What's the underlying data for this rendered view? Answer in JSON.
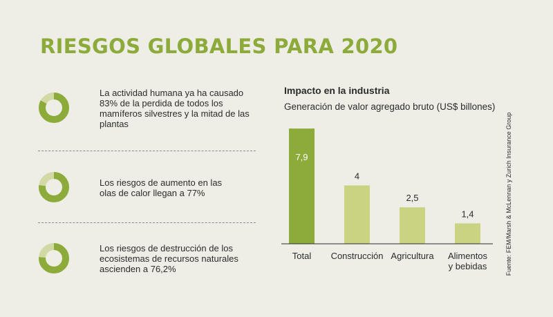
{
  "title": "RIESGOS GLOBALES PARA 2020",
  "stats": [
    {
      "text": "La actividad humana ya ha causado 83% de la perdida de todos los mamíferos silvestres y la mitad de las plantas",
      "percent": 83
    },
    {
      "text": "Los riesgos de aumento en las olas de calor llegan a 77%",
      "percent": 77
    },
    {
      "text": "Los riesgos de destrucción de los ecosistemas de recursos naturales ascienden a 76,2%",
      "percent": 76.2
    }
  ],
  "source": "Fuente: FEM/Marsh & McLennan y Zurich Insurance Group",
  "colors": {
    "title": "#8dab3b",
    "donut_main": "#8dab3b",
    "donut_rest": "#d3d9a4",
    "bar_total": "#8dab3b",
    "bar_other": "#c9d381",
    "background": "#eeeee6"
  },
  "chart_data": {
    "type": "bar",
    "title": "Impacto en la industria",
    "subtitle": "Generación de valor agregado bruto (US$ billones)",
    "categories": [
      "Total",
      "Construcción",
      "Agricultura",
      "Alimentos y bebidas"
    ],
    "category_lines": [
      [
        "Total"
      ],
      [
        "Construcción"
      ],
      [
        "Agricultura"
      ],
      [
        "Alimentos",
        "y bebidas"
      ]
    ],
    "values": [
      7.9,
      4,
      2.5,
      1.4
    ],
    "value_labels": [
      "7,9",
      "4",
      "2,5",
      "1,4"
    ],
    "ylim": [
      0,
      8
    ],
    "grid": false,
    "legend": "none"
  }
}
